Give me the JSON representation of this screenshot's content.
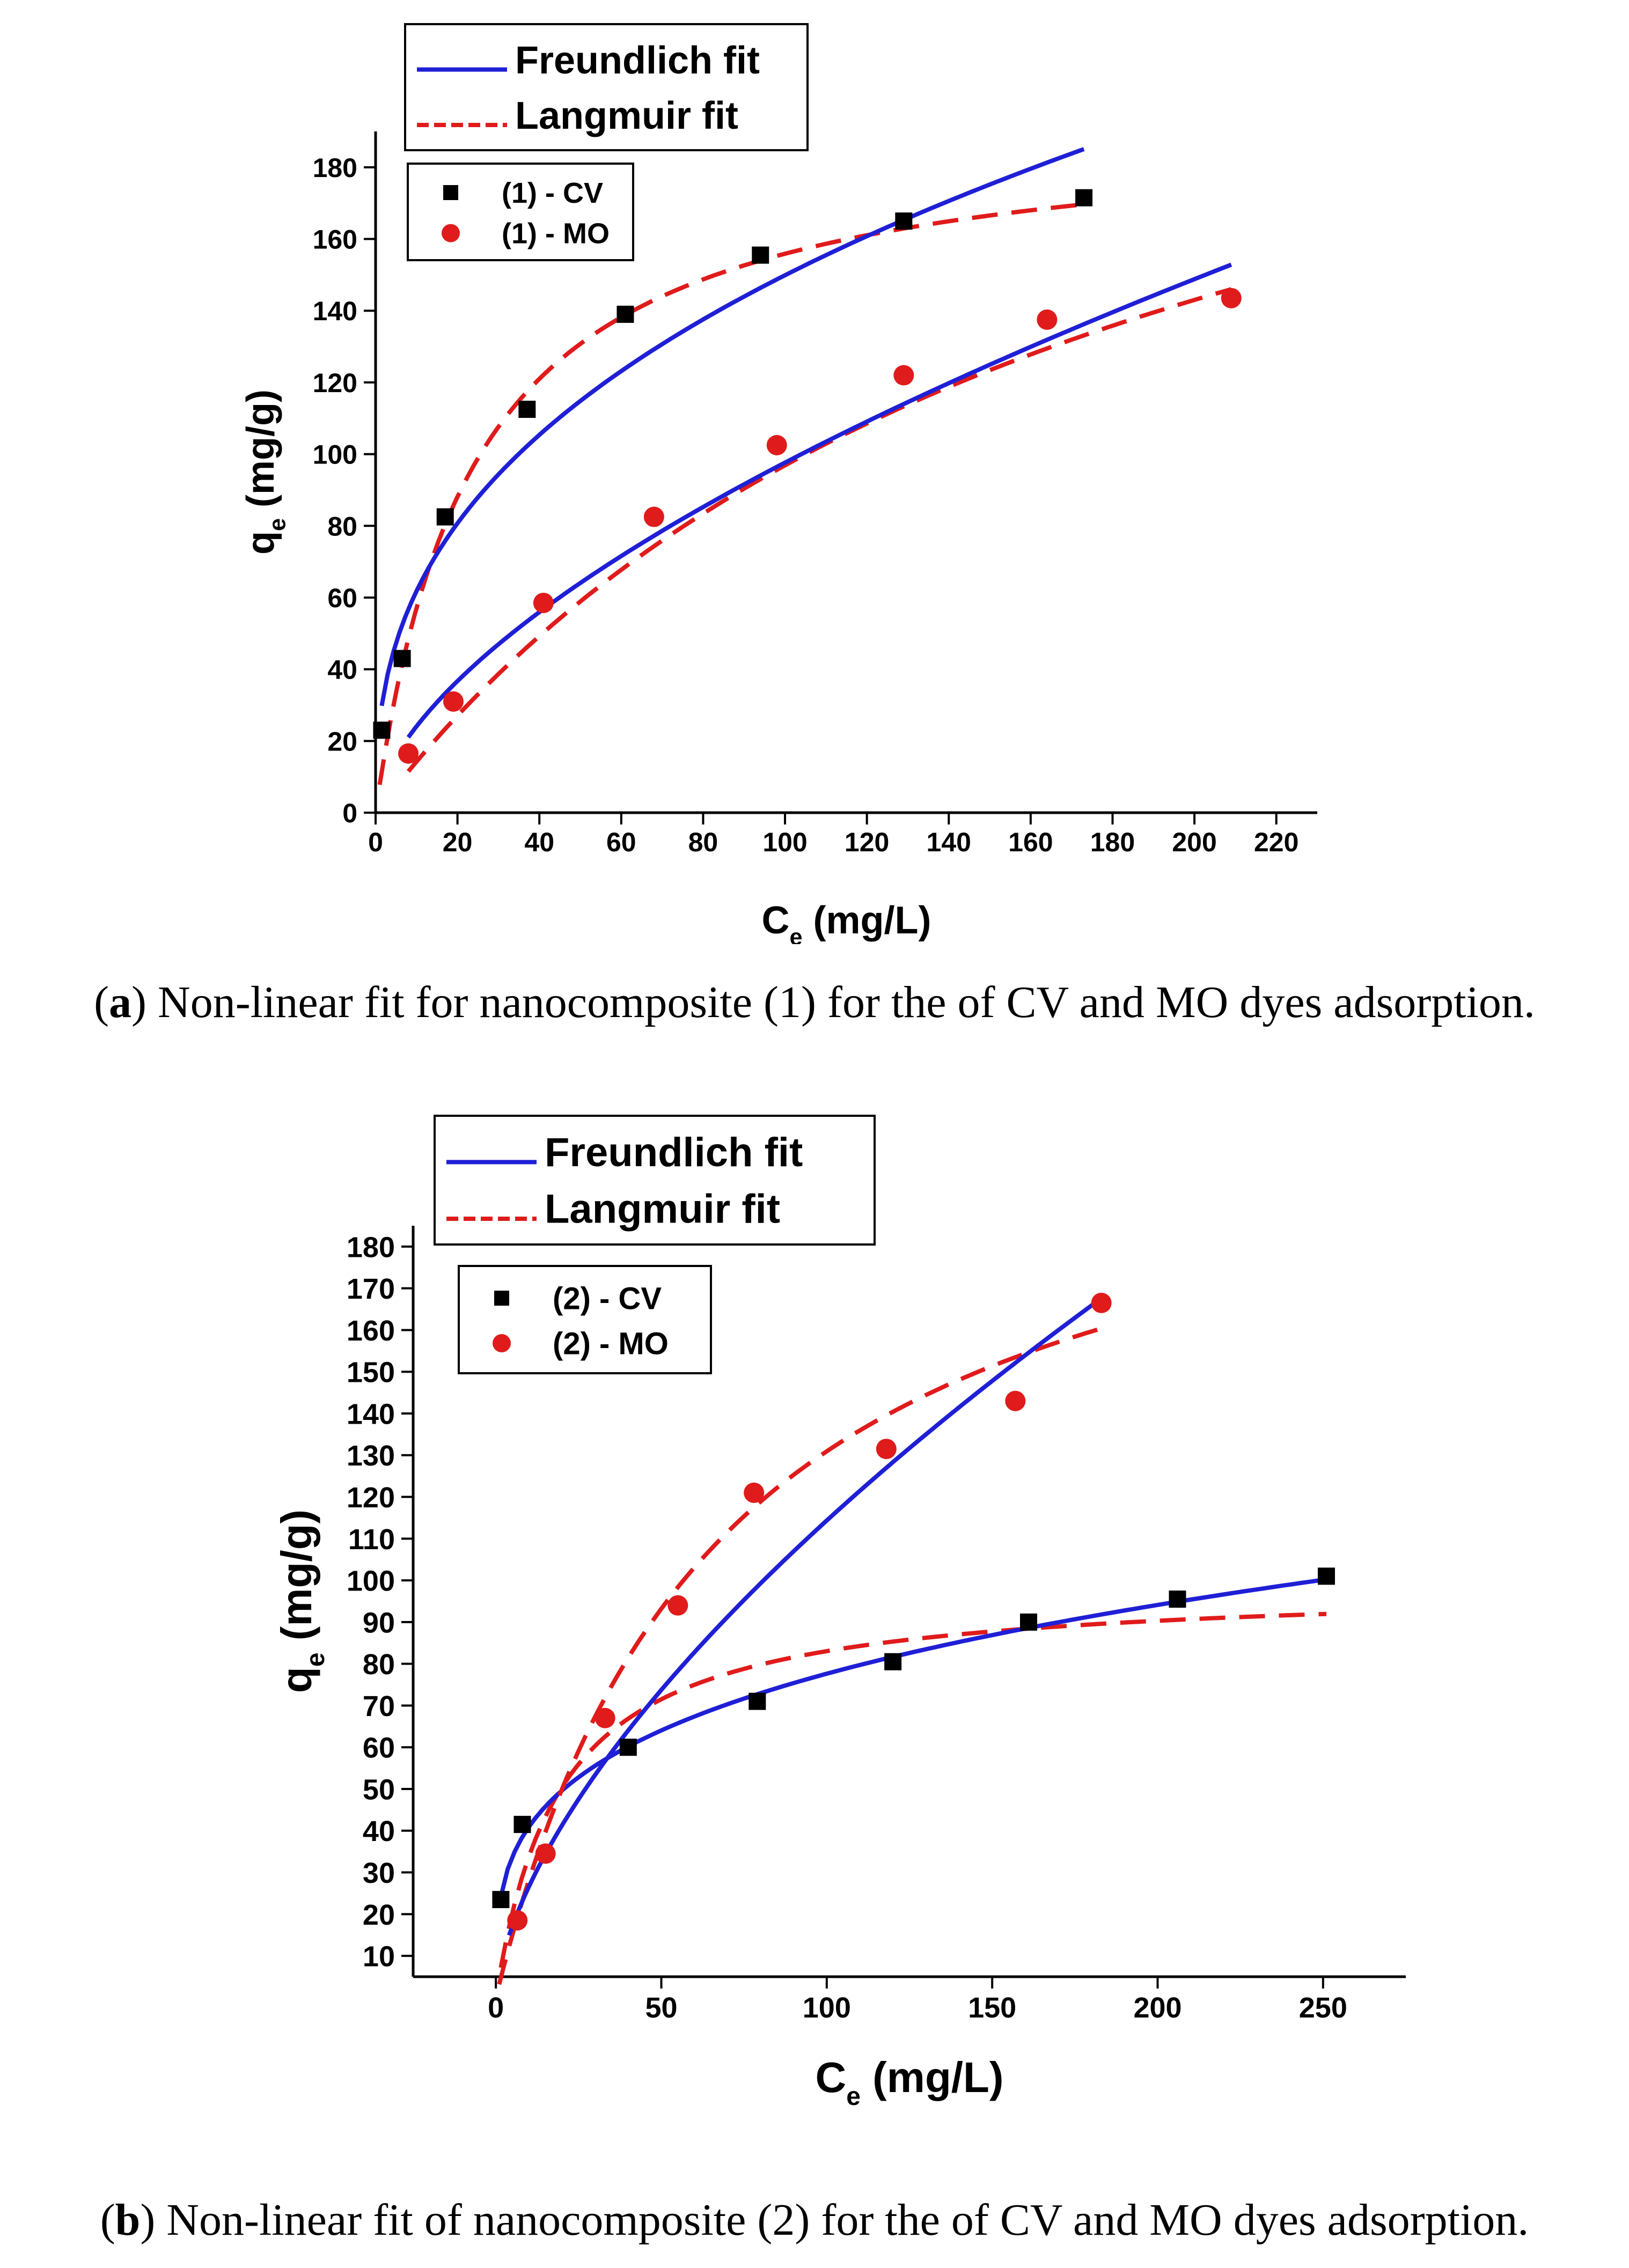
{
  "chart_data": [
    {
      "id": "a",
      "type": "scatter",
      "xlabel": "C",
      "xlabel_sub": "e",
      "xlabel_unit": " (mg/L)",
      "ylabel": "q",
      "ylabel_sub": "e",
      "ylabel_unit": " (mg/g)",
      "xlim": [
        0,
        230
      ],
      "ylim": [
        0,
        190
      ],
      "xticks": [
        0,
        20,
        40,
        60,
        80,
        100,
        120,
        140,
        160,
        180,
        200,
        220
      ],
      "yticks": [
        0,
        20,
        40,
        60,
        80,
        100,
        120,
        140,
        160,
        180
      ],
      "fit_legend": [
        {
          "label": "Freundlich fit",
          "style": "solid",
          "color": "#1f1fd6"
        },
        {
          "label": "Langmuir fit",
          "style": "dashed",
          "color": "#e01b1b"
        }
      ],
      "series_legend": [
        {
          "label": "(1) - CV",
          "marker": "square",
          "color": "#000000"
        },
        {
          "label": "(1) - MO",
          "marker": "circle",
          "color": "#e01b1b"
        }
      ],
      "series": [
        {
          "name": "(1) - CV",
          "marker": "square",
          "color": "#000000",
          "points": [
            [
              1.5,
              23
            ],
            [
              6.5,
              43
            ],
            [
              17,
              82.5
            ],
            [
              37,
              112.5
            ],
            [
              61,
              139
            ],
            [
              94,
              155.5
            ],
            [
              129,
              165
            ],
            [
              173,
              171.5
            ]
          ],
          "freundlich": {
            "K": 25.5,
            "n": 2.6,
            "x0": 1.5,
            "x1": 173
          },
          "langmuir": {
            "qmax": 193,
            "KL": 0.042,
            "x0": 1,
            "x1": 173
          }
        },
        {
          "name": "(1) - MO",
          "marker": "circle",
          "color": "#e01b1b",
          "points": [
            [
              8,
              16.5
            ],
            [
              19,
              31
            ],
            [
              41,
              58.5
            ],
            [
              68,
              82.5
            ],
            [
              98,
              102.5
            ],
            [
              129,
              122
            ],
            [
              164,
              137.5
            ],
            [
              209,
              143.5
            ]
          ],
          "freundlich": {
            "K": 5.94,
            "n": 1.645,
            "x0": 8,
            "x1": 209
          },
          "langmuir": {
            "qmax": 273,
            "KL": 0.0055,
            "x0": 8,
            "x1": 209
          }
        }
      ]
    },
    {
      "id": "b",
      "type": "scatter",
      "xlabel": "C",
      "xlabel_sub": "e",
      "xlabel_unit": " (mg/L)",
      "ylabel": "q",
      "ylabel_sub": "e",
      "ylabel_unit": " (mg/g)",
      "xlim": [
        -25,
        275
      ],
      "ylim": [
        5,
        185
      ],
      "xticks": [
        0,
        50,
        100,
        150,
        200,
        250
      ],
      "yticks": [
        10,
        20,
        30,
        40,
        50,
        60,
        70,
        80,
        90,
        100,
        110,
        120,
        130,
        140,
        150,
        160,
        170,
        180
      ],
      "fit_legend": [
        {
          "label": "Freundlich fit",
          "style": "solid",
          "color": "#1f1fd6"
        },
        {
          "label": "Langmuir fit",
          "style": "dashed",
          "color": "#e01b1b"
        }
      ],
      "series_legend": [
        {
          "label": "(2) - CV",
          "marker": "square",
          "color": "#000000"
        },
        {
          "label": "(2) - MO",
          "marker": "circle",
          "color": "#e01b1b"
        }
      ],
      "series": [
        {
          "name": "(2) - CV",
          "marker": "square",
          "color": "#000000",
          "points": [
            [
              1.5,
              23.5
            ],
            [
              8,
              41.5
            ],
            [
              40,
              60
            ],
            [
              79,
              71
            ],
            [
              120,
              80.5
            ],
            [
              161,
              90
            ],
            [
              206,
              95.5
            ],
            [
              251,
              101
            ]
          ],
          "freundlich": {
            "K": 21.6,
            "n": 3.6,
            "x0": 1.5,
            "x1": 251
          },
          "langmuir": {
            "qmax": 99,
            "KL": 0.052,
            "x0": 1.5,
            "x1": 251
          }
        },
        {
          "name": "(2) - MO",
          "marker": "circle",
          "color": "#e01b1b",
          "points": [
            [
              6.5,
              18.5
            ],
            [
              15,
              34.5
            ],
            [
              33,
              67
            ],
            [
              55,
              94
            ],
            [
              78,
              121
            ],
            [
              118,
              131.5
            ],
            [
              157,
              143
            ],
            [
              183,
              166.5
            ]
          ],
          "freundlich": {
            "K": 6.2,
            "n": 1.58,
            "x0": 4,
            "x1": 183
          },
          "langmuir": {
            "qmax": 220,
            "KL": 0.0147,
            "x0": 1,
            "x1": 183
          }
        }
      ]
    }
  ],
  "captions": {
    "a": {
      "label": "a",
      "text": "Non-linear fit for nanocomposite (1) for the of CV and MO dyes adsorption."
    },
    "b": {
      "label": "b",
      "text": "Non-linear fit of nanocomposite (2) for the of CV and MO dyes adsorption."
    }
  }
}
